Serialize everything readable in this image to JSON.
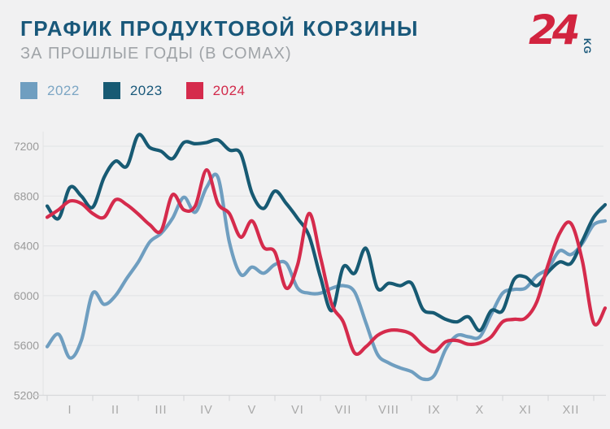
{
  "header": {
    "title": "ГРАФИК ПРОДУКТОВОЙ КОРЗИНЫ",
    "subtitle": "ЗА ПРОШЛЫЕ ГОДЫ (В СОМАХ)"
  },
  "logo": {
    "number": "24",
    "suffix": "KG"
  },
  "colors": {
    "background": "#f1f1f2",
    "title": "#19587a",
    "subtitle": "#a0a4a8",
    "grid": "#e4e5e7",
    "axis": "#d7d8da",
    "y_tick_label": "#9a9a9a",
    "x_tick_label": "#a8a8a8",
    "logo_red": "#d2243f",
    "logo_kg": "#19587a"
  },
  "chart_data": {
    "type": "line",
    "title": "ГРАФИК ПРОДУКТОВОЙ КОРЗИНЫ",
    "subtitle": "ЗА ПРОШЛЫЕ ГОДЫ (В СОМАХ)",
    "xlabel": "",
    "ylabel": "",
    "x_tick_labels": [
      "I",
      "II",
      "III",
      "IV",
      "V",
      "VI",
      "VII",
      "VIII",
      "IX",
      "X",
      "XI",
      "XII"
    ],
    "y_ticks": [
      5200,
      5600,
      6000,
      6400,
      6800,
      7200
    ],
    "ylim": [
      5200,
      7390
    ],
    "grid": "horizontal",
    "legend_position": "top-left",
    "x_start": 0.5,
    "x_step": 0.25,
    "series": [
      {
        "name": "2022",
        "color": "#6f9ec0",
        "label_color": "#7ca6c4",
        "values": [
          5590,
          5690,
          5500,
          5640,
          6020,
          5930,
          6000,
          6140,
          6270,
          6430,
          6500,
          6620,
          6790,
          6670,
          6870,
          6950,
          6430,
          6170,
          6230,
          6180,
          6250,
          6260,
          6060,
          6020,
          6020,
          6060,
          6080,
          6030,
          5780,
          5530,
          5460,
          5420,
          5390,
          5330,
          5360,
          5570,
          5680,
          5670,
          5670,
          5850,
          6020,
          6050,
          6060,
          6160,
          6220,
          6360,
          6330,
          6420,
          6570,
          6600
        ]
      },
      {
        "name": "2023",
        "color": "#175a73",
        "label_color": "#19587a",
        "values": [
          6720,
          6620,
          6870,
          6800,
          6710,
          6950,
          7080,
          7040,
          7290,
          7190,
          7160,
          7100,
          7230,
          7220,
          7230,
          7250,
          7170,
          7140,
          6820,
          6700,
          6840,
          6740,
          6620,
          6480,
          6150,
          5880,
          6230,
          6180,
          6380,
          6060,
          6100,
          6080,
          6100,
          5890,
          5860,
          5810,
          5790,
          5830,
          5720,
          5880,
          5880,
          6130,
          6150,
          6080,
          6190,
          6270,
          6260,
          6440,
          6630,
          6730
        ]
      },
      {
        "name": "2024",
        "color": "#d52b4c",
        "label_color": "#d2294a",
        "values": [
          6630,
          6690,
          6760,
          6740,
          6660,
          6630,
          6770,
          6730,
          6655,
          6570,
          6520,
          6810,
          6690,
          6720,
          7010,
          6740,
          6660,
          6470,
          6600,
          6390,
          6350,
          6060,
          6250,
          6660,
          6310,
          5930,
          5790,
          5540,
          5590,
          5680,
          5720,
          5720,
          5690,
          5600,
          5550,
          5630,
          5640,
          5610,
          5620,
          5670,
          5790,
          5810,
          5820,
          5950,
          6250,
          6500,
          6580,
          6280,
          5780,
          5900
        ]
      }
    ]
  }
}
